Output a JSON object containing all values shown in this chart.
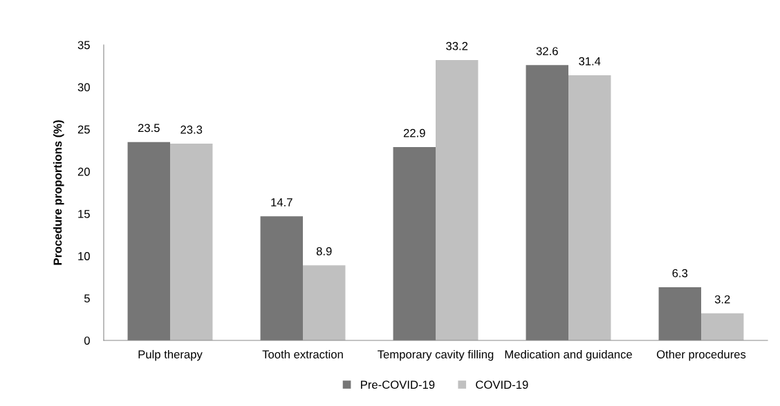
{
  "chart_data": {
    "type": "bar",
    "ylabel": "Procedure proportions (%)",
    "categories": [
      "Pulp therapy",
      "Tooth extraction",
      "Temporary cavity filling",
      "Medication and guidance",
      "Other procedures"
    ],
    "series": [
      {
        "name": "Pre-COVID-19",
        "color": "#767676",
        "values": [
          23.5,
          14.7,
          22.9,
          32.6,
          6.3
        ]
      },
      {
        "name": "COVID-19",
        "color": "#c0c0c0",
        "values": [
          23.3,
          8.9,
          33.2,
          31.4,
          3.2
        ]
      }
    ],
    "ylim": [
      0,
      35
    ],
    "yticks": [
      0,
      5,
      10,
      15,
      20,
      25,
      30,
      35
    ],
    "grid": false,
    "legend": "bottom",
    "data_labels": true
  }
}
